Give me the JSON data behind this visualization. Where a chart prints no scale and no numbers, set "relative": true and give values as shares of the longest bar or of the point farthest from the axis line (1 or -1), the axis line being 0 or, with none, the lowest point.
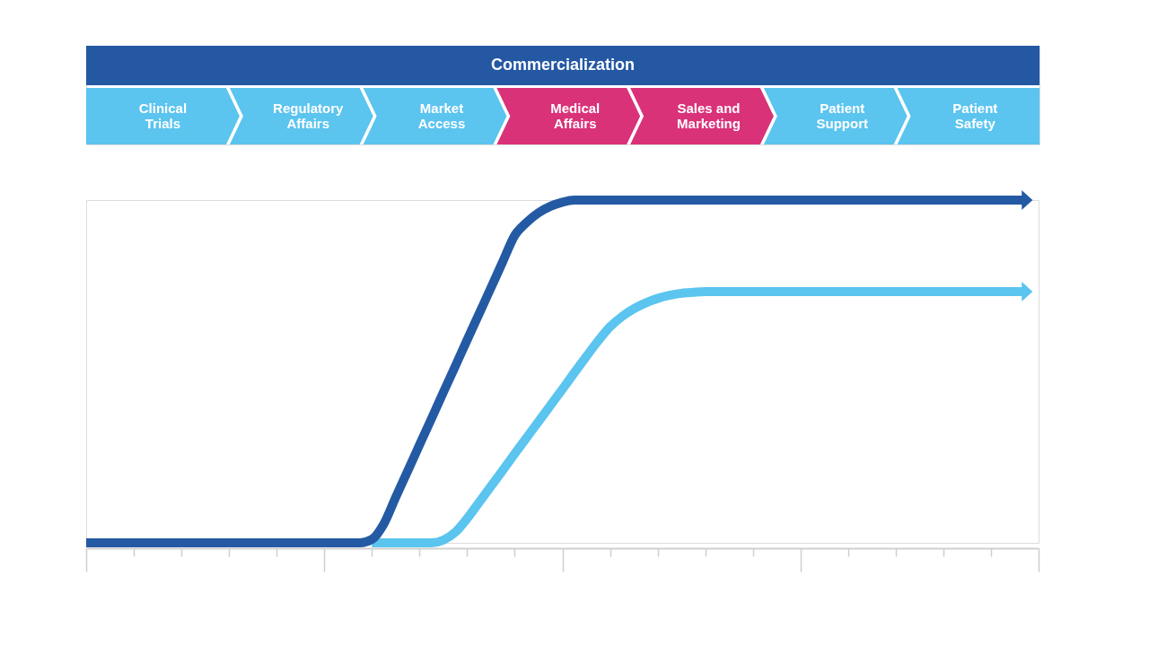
{
  "chart_data": [
    {
      "type": "other",
      "title": "Commercialization",
      "categories": [
        "Clinical Trials",
        "Regulatory Affairs",
        "Market Access",
        "Medical Affairs",
        "Sales and Marketing",
        "Patient Support",
        "Patient Safety"
      ],
      "colors": [
        "#5bc4ef",
        "#5bc4ef",
        "#5bc4ef",
        "#d93279",
        "#d93279",
        "#5bc4ef",
        "#5bc4ef"
      ]
    },
    {
      "type": "line",
      "relative": true,
      "categories": [
        null,
        null,
        null,
        null,
        null,
        null,
        null,
        null,
        null,
        null,
        null,
        null,
        null,
        null,
        null,
        null,
        null,
        null,
        null,
        null,
        null,
        null,
        null,
        null,
        null,
        null,
        null,
        null,
        null,
        null,
        null,
        null,
        null,
        null,
        null,
        null,
        null,
        null,
        null,
        null,
        null,
        null,
        null,
        null,
        null,
        null,
        null,
        null,
        null,
        null,
        null,
        null,
        null,
        null,
        null,
        null,
        null,
        null,
        null,
        null,
        null,
        null,
        null,
        null,
        null,
        null,
        null,
        null,
        null,
        null,
        null,
        null,
        null,
        null,
        null,
        null,
        null,
        null,
        null,
        null,
        null
      ],
      "series": [
        {
          "color": "#245aa3",
          "values": [
            0,
            0,
            0,
            0,
            0,
            0,
            0,
            0,
            0,
            0,
            0,
            0,
            0,
            0,
            0,
            0,
            0,
            0,
            0,
            0,
            0,
            0,
            0,
            0,
            0.01,
            0.055,
            0.133,
            0.209,
            0.286,
            0.362,
            0.439,
            0.515,
            0.592,
            0.668,
            0.744,
            0.821,
            0.897,
            0.935,
            0.963,
            0.982,
            0.994,
            1,
            1,
            1,
            1,
            1,
            1,
            1,
            1,
            1,
            1,
            1,
            1,
            1,
            1,
            1,
            1,
            1,
            1,
            1,
            1,
            1,
            1,
            1,
            1,
            1,
            1,
            1,
            1,
            1,
            1,
            1,
            1,
            1,
            1,
            1,
            1,
            1,
            1,
            1,
            null
          ]
        },
        {
          "color": "#5bc4ef",
          "values": [
            null,
            null,
            null,
            null,
            null,
            null,
            null,
            null,
            null,
            null,
            null,
            null,
            null,
            null,
            null,
            null,
            null,
            null,
            null,
            null,
            null,
            null,
            null,
            null,
            0,
            0,
            0,
            0,
            0,
            0,
            0.008,
            0.031,
            0.071,
            0.118,
            0.165,
            0.212,
            0.26,
            0.307,
            0.354,
            0.401,
            0.448,
            0.496,
            0.543,
            0.589,
            0.63,
            0.66,
            0.683,
            0.7,
            0.713,
            0.722,
            0.728,
            0.731,
            0.733,
            0.733,
            0.733,
            0.733,
            0.733,
            0.733,
            0.733,
            0.733,
            0.733,
            0.733,
            0.733,
            0.733,
            0.733,
            0.733,
            0.733,
            0.733,
            0.733,
            0.733,
            0.733,
            0.733,
            0.733,
            0.733,
            0.733,
            0.733,
            0.733,
            0.733,
            0.733,
            0.733,
            null
          ]
        }
      ]
    }
  ]
}
